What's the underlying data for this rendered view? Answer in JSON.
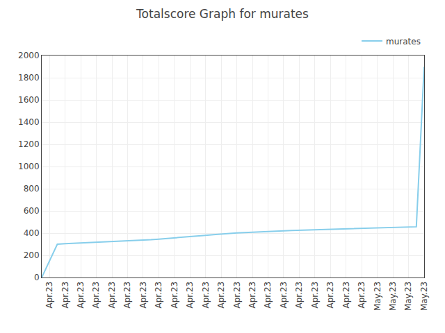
{
  "chart_data": {
    "type": "line",
    "title": "Totalscore Graph for murates",
    "x": [
      0,
      1,
      2,
      3,
      4,
      5,
      6,
      7,
      8,
      9,
      10,
      11,
      12,
      13,
      14,
      15,
      16,
      17,
      18,
      19,
      20,
      21,
      22,
      23,
      24,
      25,
      26,
      27,
      28,
      29,
      30,
      31,
      32,
      33,
      34,
      35,
      36,
      37,
      38,
      39,
      40,
      41,
      42,
      43,
      44,
      45,
      46,
      47,
      48,
      49
    ],
    "series": [
      {
        "name": "murates",
        "color": "#87CEEB",
        "values": [
          0,
          150,
          300,
          305,
          308,
          311,
          314,
          317,
          320,
          323,
          326,
          330,
          333,
          337,
          341,
          346,
          351,
          357,
          363,
          368,
          374,
          380,
          386,
          392,
          397,
          401,
          405,
          409,
          413,
          417,
          419,
          421,
          424,
          426,
          428,
          430,
          432,
          434,
          436,
          439,
          441,
          443,
          445,
          447,
          449,
          451,
          453,
          455,
          457,
          1900
        ]
      }
    ],
    "xlim": [
      0,
      49
    ],
    "xticks": [
      {
        "value": 1,
        "label": "Apr.23"
      },
      {
        "value": 3,
        "label": "Apr.23"
      },
      {
        "value": 5,
        "label": "Apr.23"
      },
      {
        "value": 7,
        "label": "Apr.23"
      },
      {
        "value": 9,
        "label": "Apr.23"
      },
      {
        "value": 11,
        "label": "Apr.23"
      },
      {
        "value": 13,
        "label": "Apr.23"
      },
      {
        "value": 15,
        "label": "Apr.23"
      },
      {
        "value": 17,
        "label": "Apr.23"
      },
      {
        "value": 19,
        "label": "Apr.23"
      },
      {
        "value": 21,
        "label": "Apr.23"
      },
      {
        "value": 23,
        "label": "Apr.23"
      },
      {
        "value": 25,
        "label": "Apr.23"
      },
      {
        "value": 27,
        "label": "Apr.23"
      },
      {
        "value": 29,
        "label": "Apr.23"
      },
      {
        "value": 31,
        "label": "Apr.23"
      },
      {
        "value": 33,
        "label": "Apr.23"
      },
      {
        "value": 35,
        "label": "Apr.23"
      },
      {
        "value": 37,
        "label": "Apr.23"
      },
      {
        "value": 39,
        "label": "Apr.23"
      },
      {
        "value": 41,
        "label": "Apr.23"
      },
      {
        "value": 43,
        "label": "May.23"
      },
      {
        "value": 45,
        "label": "May.23"
      },
      {
        "value": 47,
        "label": "May.23"
      },
      {
        "value": 49,
        "label": "May.23"
      }
    ],
    "ylim": [
      0,
      2000
    ],
    "yticks": [
      0,
      200,
      400,
      600,
      800,
      1000,
      1200,
      1400,
      1600,
      1800,
      2000
    ],
    "grid": true,
    "legend": "upper right"
  }
}
